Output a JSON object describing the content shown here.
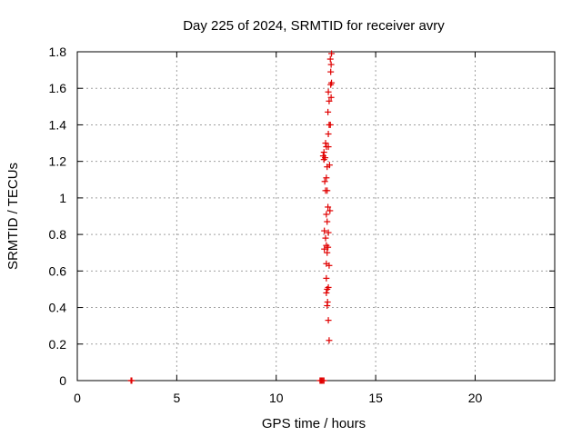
{
  "chart_data": {
    "type": "scatter",
    "title": "Day 225 of 2024, SRMTID for receiver avry",
    "xlabel": "GPS time / hours",
    "ylabel": "SRMTID / TECUs",
    "xlim": [
      0,
      24
    ],
    "ylim": [
      0,
      1.8
    ],
    "xticks": [
      "0",
      "5",
      "10",
      "15",
      "20"
    ],
    "yticks": [
      "0",
      "0.2",
      "0.4",
      "0.6",
      "0.8",
      "1",
      "1.2",
      "1.4",
      "1.6",
      "1.8"
    ],
    "grid": true,
    "marker": "plus",
    "color": "#e00000",
    "series": [
      {
        "points": [
          [
            2.7,
            0.0
          ],
          [
            2.72,
            0.0
          ],
          [
            2.74,
            0.0
          ],
          [
            12.2,
            0.0
          ],
          [
            12.25,
            0.0
          ],
          [
            12.3,
            0.0
          ],
          [
            12.35,
            0.0
          ],
          [
            12.4,
            0.0
          ],
          [
            12.78,
            1.79
          ],
          [
            12.72,
            1.76
          ],
          [
            12.76,
            1.73
          ],
          [
            12.74,
            1.69
          ],
          [
            12.78,
            1.63
          ],
          [
            12.74,
            1.62
          ],
          [
            12.62,
            1.58
          ],
          [
            12.76,
            1.55
          ],
          [
            12.66,
            1.53
          ],
          [
            12.6,
            1.47
          ],
          [
            12.72,
            1.4
          ],
          [
            12.66,
            1.4
          ],
          [
            12.62,
            1.35
          ],
          [
            12.48,
            1.3
          ],
          [
            12.52,
            1.28
          ],
          [
            12.62,
            1.28
          ],
          [
            12.4,
            1.25
          ],
          [
            12.36,
            1.23
          ],
          [
            12.4,
            1.21
          ],
          [
            12.46,
            1.22
          ],
          [
            12.68,
            1.18
          ],
          [
            12.56,
            1.17
          ],
          [
            12.52,
            1.11
          ],
          [
            12.44,
            1.09
          ],
          [
            12.48,
            1.04
          ],
          [
            12.56,
            1.04
          ],
          [
            12.6,
            0.95
          ],
          [
            12.7,
            0.93
          ],
          [
            12.52,
            0.91
          ],
          [
            12.56,
            0.87
          ],
          [
            12.42,
            0.82
          ],
          [
            12.62,
            0.81
          ],
          [
            12.48,
            0.78
          ],
          [
            12.52,
            0.74
          ],
          [
            12.42,
            0.72
          ],
          [
            12.6,
            0.73
          ],
          [
            12.56,
            0.7
          ],
          [
            12.52,
            0.64
          ],
          [
            12.66,
            0.63
          ],
          [
            12.52,
            0.56
          ],
          [
            12.62,
            0.51
          ],
          [
            12.56,
            0.5
          ],
          [
            12.52,
            0.48
          ],
          [
            12.58,
            0.43
          ],
          [
            12.56,
            0.41
          ],
          [
            12.62,
            0.33
          ],
          [
            12.66,
            0.22
          ]
        ]
      }
    ]
  }
}
